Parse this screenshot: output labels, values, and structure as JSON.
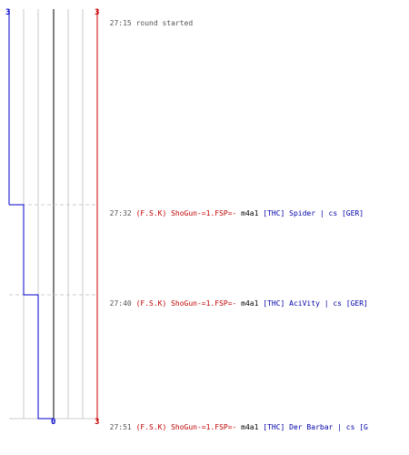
{
  "score": {
    "blue_top": "3",
    "red_top": "3",
    "blue_bottom": "0",
    "red_bottom": "3"
  },
  "round_start": {
    "time": "27:15",
    "text": "round started"
  },
  "events": [
    {
      "time": "27:32",
      "attacker": "(F.S.K) ShoGun-=1.FSP=-",
      "weapon": "m4a1",
      "victim": "[THC] Spider | cs [GER]"
    },
    {
      "time": "27:40",
      "attacker": "(F.S.K) ShoGun-=1.FSP=-",
      "weapon": "m4a1",
      "victim": "[THC] AciVity | cs [GER]"
    },
    {
      "time": "27:51",
      "attacker": "(F.S.K) ShoGun-=1.FSP=-",
      "weapon": "m4a1",
      "victim": "[THC] Der Barbar | cs [G"
    }
  ],
  "colors": {
    "blue_team": "#0000cc",
    "red_team": "#cc0000",
    "grid": "#c0c0c0",
    "center_line": "#808080",
    "dashed": "#cccccc"
  }
}
